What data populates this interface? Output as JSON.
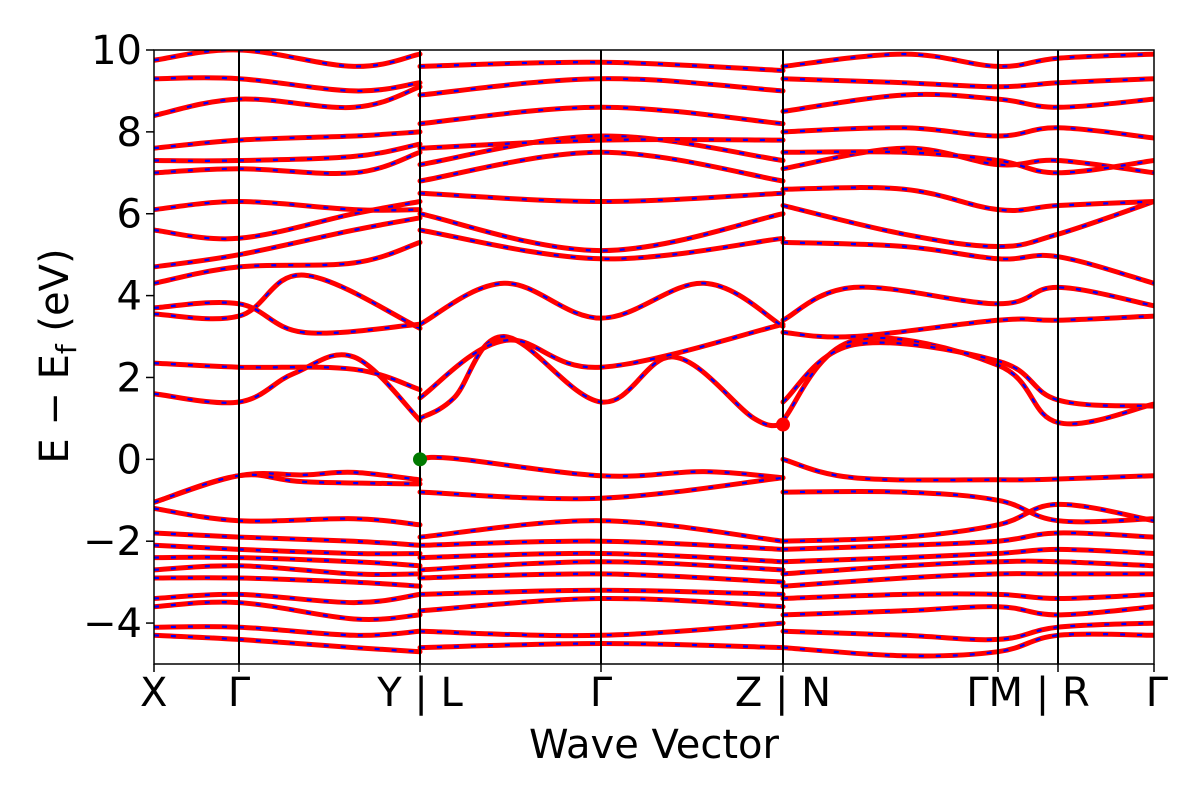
{
  "chart_data": {
    "type": "line",
    "title": "",
    "xlabel": "Wave Vector",
    "ylabel_main": "E − E",
    "ylabel_sub": "f",
    "ylabel_unit": " (eV)",
    "ylim": [
      -5,
      10
    ],
    "yticks": [
      -4,
      -2,
      0,
      2,
      4,
      6,
      8,
      10
    ],
    "ytick_labels": [
      "−4",
      "−2",
      "0",
      "2",
      "4",
      "6",
      "8",
      "10"
    ],
    "grid": false,
    "x_segments": [
      0.0,
      0.085,
      0.266,
      0.447,
      0.629,
      0.844,
      0.904,
      1.0
    ],
    "kpoint_labels": [
      "X",
      "Γ",
      "Y | L",
      "Γ",
      "Z | N",
      "ΓM | R",
      "Γ"
    ],
    "kpoint_label_positions": [
      0.0,
      0.085,
      0.266,
      0.447,
      0.629,
      0.874,
      1.0
    ],
    "vertical_lines": [
      0.085,
      0.266,
      0.447,
      0.629,
      0.844,
      0.904
    ],
    "series_colors": {
      "spin_up": "#ff0000",
      "spin_down": "#0000ff"
    },
    "markers": [
      {
        "label": "valence band maximum",
        "k": 0.266,
        "energy": 0.0,
        "color": "#007a00"
      },
      {
        "label": "conduction band minimum",
        "k": 0.629,
        "energy": 0.85,
        "color": "#ff0000"
      }
    ],
    "bands": [
      {
        "k": [
          0,
          0.085,
          0.15,
          0.2,
          0.266
        ],
        "energy": [
          -1.05,
          -0.4,
          -0.38,
          -0.32,
          -0.5
        ]
      },
      {
        "k": [
          0,
          0.085,
          0.15,
          0.266
        ],
        "energy": [
          -1.05,
          -0.4,
          -0.55,
          -0.6
        ]
      },
      {
        "k": [
          0.266,
          0.3,
          0.447,
          0.55,
          0.629
        ],
        "energy": [
          0.0,
          0.02,
          -0.4,
          -0.3,
          -0.45
        ]
      },
      {
        "k": [
          0.266,
          0.447,
          0.629
        ],
        "energy": [
          -0.8,
          -0.95,
          -0.45
        ]
      },
      {
        "k": [
          0.629,
          0.7,
          0.844,
          0.904,
          1.0
        ],
        "energy": [
          0.0,
          -0.45,
          -0.5,
          -0.48,
          -0.4
        ]
      },
      {
        "k": [
          0.629,
          0.75,
          0.844,
          0.904,
          1.0
        ],
        "energy": [
          -0.8,
          -0.8,
          -1.0,
          -1.5,
          -1.45
        ]
      },
      {
        "k": [
          0,
          0.085,
          0.14,
          0.2,
          0.266
        ],
        "energy": [
          1.6,
          1.4,
          2.1,
          2.5,
          0.95
        ]
      },
      {
        "k": [
          0,
          0.085,
          0.2,
          0.266
        ],
        "energy": [
          2.35,
          2.25,
          2.2,
          1.7
        ]
      },
      {
        "k": [
          0.266,
          0.3,
          0.35,
          0.447,
          0.52,
          0.6,
          0.629
        ],
        "energy": [
          1.0,
          1.5,
          3.0,
          1.4,
          2.5,
          1.0,
          0.85
        ]
      },
      {
        "k": [
          0.266,
          0.35,
          0.447,
          0.629
        ],
        "energy": [
          1.5,
          2.9,
          2.25,
          3.3
        ]
      },
      {
        "k": [
          0.629,
          0.7,
          0.844,
          0.904,
          1.0
        ],
        "energy": [
          0.95,
          2.9,
          2.3,
          0.9,
          1.35
        ]
      },
      {
        "k": [
          0.629,
          0.7,
          0.844,
          0.904,
          1.0
        ],
        "energy": [
          1.4,
          2.8,
          2.4,
          1.45,
          1.3
        ]
      },
      {
        "k": [
          0,
          0.085,
          0.15,
          0.266
        ],
        "energy": [
          3.55,
          3.5,
          4.5,
          3.2
        ]
      },
      {
        "k": [
          0,
          0.085,
          0.15,
          0.266
        ],
        "energy": [
          3.7,
          3.8,
          3.1,
          3.3
        ]
      },
      {
        "k": [
          0.266,
          0.35,
          0.447,
          0.55,
          0.629
        ],
        "energy": [
          3.3,
          4.3,
          3.45,
          4.3,
          3.25
        ]
      },
      {
        "k": [
          0.629,
          0.7,
          0.844,
          0.904,
          1.0
        ],
        "energy": [
          3.1,
          3.0,
          3.4,
          3.4,
          3.5
        ]
      },
      {
        "k": [
          0.629,
          0.7,
          0.844,
          0.904,
          1.0
        ],
        "energy": [
          3.4,
          4.2,
          3.8,
          4.2,
          3.75
        ]
      },
      {
        "k": [
          0,
          0.085,
          0.2,
          0.266
        ],
        "energy": [
          4.3,
          4.7,
          4.8,
          5.3
        ]
      },
      {
        "k": [
          0,
          0.085,
          0.2,
          0.266
        ],
        "energy": [
          4.7,
          5.0,
          5.6,
          5.9
        ]
      },
      {
        "k": [
          0.266,
          0.447,
          0.629
        ],
        "energy": [
          5.6,
          4.9,
          5.4
        ]
      },
      {
        "k": [
          0.266,
          0.447,
          0.629
        ],
        "energy": [
          6.0,
          5.1,
          6.0
        ]
      },
      {
        "k": [
          0.629,
          0.75,
          0.844,
          0.904,
          1.0
        ],
        "energy": [
          5.3,
          5.2,
          4.9,
          4.95,
          4.3
        ]
      },
      {
        "k": [
          0.629,
          0.75,
          0.844,
          0.904,
          1.0
        ],
        "energy": [
          6.2,
          5.5,
          5.2,
          5.5,
          6.3
        ]
      },
      {
        "k": [
          0,
          0.085,
          0.2,
          0.266
        ],
        "energy": [
          5.6,
          5.4,
          6.0,
          6.3
        ]
      },
      {
        "k": [
          0,
          0.085,
          0.2,
          0.266
        ],
        "energy": [
          6.1,
          6.3,
          6.1,
          6.1
        ]
      },
      {
        "k": [
          0.266,
          0.447,
          0.629
        ],
        "energy": [
          6.5,
          6.3,
          6.5
        ]
      },
      {
        "k": [
          0.266,
          0.447,
          0.629
        ],
        "energy": [
          6.8,
          7.5,
          6.8
        ]
      },
      {
        "k": [
          0.629,
          0.75,
          0.844,
          0.904,
          1.0
        ],
        "energy": [
          6.6,
          6.6,
          6.1,
          6.2,
          6.3
        ]
      },
      {
        "k": [
          0,
          0.085,
          0.2,
          0.266
        ],
        "energy": [
          7.0,
          7.1,
          7.0,
          7.5
        ]
      },
      {
        "k": [
          0,
          0.085,
          0.2,
          0.266
        ],
        "energy": [
          7.3,
          7.3,
          7.4,
          7.7
        ]
      },
      {
        "k": [
          0.266,
          0.447,
          0.629
        ],
        "energy": [
          7.2,
          7.9,
          7.3
        ]
      },
      {
        "k": [
          0.266,
          0.447,
          0.629
        ],
        "energy": [
          7.6,
          7.8,
          7.8
        ]
      },
      {
        "k": [
          0.629,
          0.75,
          0.844,
          0.904,
          1.0
        ],
        "energy": [
          7.1,
          7.6,
          7.2,
          7.3,
          7.0
        ]
      },
      {
        "k": [
          0.629,
          0.75,
          0.844,
          0.904,
          1.0
        ],
        "energy": [
          7.5,
          7.5,
          7.3,
          7.0,
          7.3
        ]
      },
      {
        "k": [
          0,
          0.085,
          0.2,
          0.266
        ],
        "energy": [
          7.6,
          7.8,
          7.9,
          8.0
        ]
      },
      {
        "k": [
          0,
          0.085,
          0.2,
          0.266
        ],
        "energy": [
          8.4,
          8.8,
          8.6,
          9.1
        ]
      },
      {
        "k": [
          0.266,
          0.447,
          0.629
        ],
        "energy": [
          8.2,
          8.6,
          8.2
        ]
      },
      {
        "k": [
          0.266,
          0.447,
          0.629
        ],
        "energy": [
          8.9,
          9.3,
          9.0
        ]
      },
      {
        "k": [
          0.629,
          0.75,
          0.844,
          0.904,
          1.0
        ],
        "energy": [
          8.0,
          8.1,
          7.9,
          8.1,
          7.85
        ]
      },
      {
        "k": [
          0.629,
          0.75,
          0.844,
          0.904,
          1.0
        ],
        "energy": [
          8.5,
          8.9,
          8.8,
          8.6,
          8.8
        ]
      },
      {
        "k": [
          0,
          0.085,
          0.2,
          0.266
        ],
        "energy": [
          9.3,
          9.3,
          9.0,
          9.2
        ]
      },
      {
        "k": [
          0,
          0.085,
          0.2,
          0.266
        ],
        "energy": [
          9.75,
          10.0,
          9.6,
          9.9
        ]
      },
      {
        "k": [
          0.266,
          0.447,
          0.629
        ],
        "energy": [
          9.6,
          9.7,
          9.5
        ]
      },
      {
        "k": [
          0.629,
          0.75,
          0.844,
          0.904,
          1.0
        ],
        "energy": [
          9.3,
          9.2,
          9.1,
          9.2,
          9.3
        ]
      },
      {
        "k": [
          0.629,
          0.75,
          0.844,
          0.904,
          1.0
        ],
        "energy": [
          9.6,
          9.9,
          9.6,
          9.8,
          9.9
        ]
      },
      {
        "k": [
          0,
          0.085,
          0.2,
          0.266
        ],
        "energy": [
          -1.2,
          -1.5,
          -1.45,
          -1.6
        ]
      },
      {
        "k": [
          0,
          0.085,
          0.2,
          0.266
        ],
        "energy": [
          -1.8,
          -1.9,
          -2.0,
          -2.1
        ]
      },
      {
        "k": [
          0,
          0.085,
          0.2,
          0.266
        ],
        "energy": [
          -2.1,
          -2.2,
          -2.3,
          -2.3
        ]
      },
      {
        "k": [
          0,
          0.085,
          0.2,
          0.266
        ],
        "energy": [
          -2.4,
          -2.4,
          -2.5,
          -2.6
        ]
      },
      {
        "k": [
          0,
          0.085,
          0.2,
          0.266
        ],
        "energy": [
          -2.7,
          -2.6,
          -2.8,
          -2.8
        ]
      },
      {
        "k": [
          0,
          0.085,
          0.2,
          0.266
        ],
        "energy": [
          -2.9,
          -2.9,
          -3.0,
          -3.1
        ]
      },
      {
        "k": [
          0,
          0.085,
          0.2,
          0.266
        ],
        "energy": [
          -3.4,
          -3.3,
          -3.5,
          -3.3
        ]
      },
      {
        "k": [
          0,
          0.085,
          0.2,
          0.266
        ],
        "energy": [
          -3.6,
          -3.5,
          -3.9,
          -3.8
        ]
      },
      {
        "k": [
          0,
          0.085,
          0.2,
          0.266
        ],
        "energy": [
          -4.1,
          -4.1,
          -4.3,
          -4.2
        ]
      },
      {
        "k": [
          0,
          0.085,
          0.2,
          0.266
        ],
        "energy": [
          -4.3,
          -4.4,
          -4.6,
          -4.7
        ]
      },
      {
        "k": [
          0.266,
          0.447,
          0.629
        ],
        "energy": [
          -1.9,
          -1.5,
          -2.0
        ]
      },
      {
        "k": [
          0.266,
          0.447,
          0.629
        ],
        "energy": [
          -2.1,
          -2.0,
          -2.2
        ]
      },
      {
        "k": [
          0.266,
          0.447,
          0.629
        ],
        "energy": [
          -2.4,
          -2.3,
          -2.5
        ]
      },
      {
        "k": [
          0.266,
          0.447,
          0.629
        ],
        "energy": [
          -2.7,
          -2.5,
          -2.7
        ]
      },
      {
        "k": [
          0.266,
          0.447,
          0.629
        ],
        "energy": [
          -2.9,
          -2.8,
          -3.0
        ]
      },
      {
        "k": [
          0.266,
          0.447,
          0.629
        ],
        "energy": [
          -3.3,
          -3.2,
          -3.3
        ]
      },
      {
        "k": [
          0.266,
          0.447,
          0.629
        ],
        "energy": [
          -3.7,
          -3.4,
          -3.6
        ]
      },
      {
        "k": [
          0.266,
          0.447,
          0.629
        ],
        "energy": [
          -4.2,
          -4.3,
          -4.0
        ]
      },
      {
        "k": [
          0.266,
          0.447,
          0.629
        ],
        "energy": [
          -4.6,
          -4.5,
          -4.6
        ]
      },
      {
        "k": [
          0.629,
          0.75,
          0.844,
          0.904,
          1.0
        ],
        "energy": [
          -2.0,
          -1.9,
          -1.6,
          -1.1,
          -1.5
        ]
      },
      {
        "k": [
          0.629,
          0.75,
          0.844,
          0.904,
          1.0
        ],
        "energy": [
          -2.2,
          -2.1,
          -2.0,
          -1.8,
          -1.9
        ]
      },
      {
        "k": [
          0.629,
          0.75,
          0.844,
          0.904,
          1.0
        ],
        "energy": [
          -2.5,
          -2.4,
          -2.3,
          -2.2,
          -2.3
        ]
      },
      {
        "k": [
          0.629,
          0.75,
          0.844,
          0.904,
          1.0
        ],
        "energy": [
          -2.8,
          -2.6,
          -2.5,
          -2.5,
          -2.6
        ]
      },
      {
        "k": [
          0.629,
          0.75,
          0.844,
          0.904,
          1.0
        ],
        "energy": [
          -3.1,
          -2.9,
          -2.8,
          -2.8,
          -2.8
        ]
      },
      {
        "k": [
          0.629,
          0.75,
          0.844,
          0.904,
          1.0
        ],
        "energy": [
          -3.4,
          -3.3,
          -3.3,
          -3.4,
          -3.3
        ]
      },
      {
        "k": [
          0.629,
          0.75,
          0.844,
          0.904,
          1.0
        ],
        "energy": [
          -3.8,
          -3.7,
          -3.6,
          -3.8,
          -3.6
        ]
      },
      {
        "k": [
          0.629,
          0.75,
          0.844,
          0.904,
          1.0
        ],
        "energy": [
          -4.2,
          -4.3,
          -4.4,
          -4.1,
          -4.0
        ]
      },
      {
        "k": [
          0.629,
          0.75,
          0.844,
          0.904,
          1.0
        ],
        "energy": [
          -4.6,
          -4.8,
          -4.7,
          -4.3,
          -4.3
        ]
      }
    ]
  }
}
